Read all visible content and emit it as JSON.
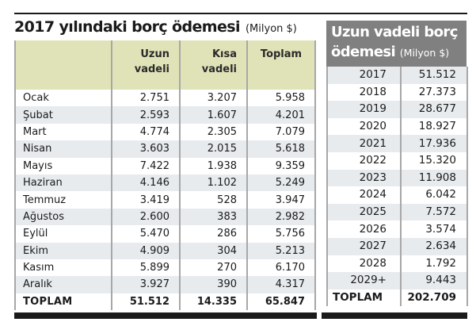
{
  "left": {
    "title": "2017 yılındaki borç ödemesi",
    "unit": "(Milyon $)",
    "headers": [
      "",
      "Uzun vadeli",
      "Kısa vadeli",
      "Toplam"
    ],
    "header_lines": {
      "uzun": [
        "Uzun",
        "vadeli"
      ],
      "kisa": [
        "Kısa",
        "vadeli"
      ],
      "toplam": [
        "Toplam"
      ]
    },
    "rows": [
      {
        "month": "Ocak",
        "uzun": "2.751",
        "kisa": "3.207",
        "toplam": "5.958"
      },
      {
        "month": "Şubat",
        "uzun": "2.593",
        "kisa": "1.607",
        "toplam": "4.201"
      },
      {
        "month": "Mart",
        "uzun": "4.774",
        "kisa": "2.305",
        "toplam": "7.079"
      },
      {
        "month": "Nisan",
        "uzun": "3.603",
        "kisa": "2.015",
        "toplam": "5.618"
      },
      {
        "month": "Mayıs",
        "uzun": "7.422",
        "kisa": "1.938",
        "toplam": "9.359"
      },
      {
        "month": "Haziran",
        "uzun": "4.146",
        "kisa": "1.102",
        "toplam": "5.249"
      },
      {
        "month": "Temmuz",
        "uzun": "3.419",
        "kisa": "528",
        "toplam": "3.947"
      },
      {
        "month": "Ağustos",
        "uzun": "2.600",
        "kisa": "383",
        "toplam": "2.982"
      },
      {
        "month": "Eylül",
        "uzun": "5.470",
        "kisa": "286",
        "toplam": "5.756"
      },
      {
        "month": "Ekim",
        "uzun": "4.909",
        "kisa": "304",
        "toplam": "5.213"
      },
      {
        "month": "Kasım",
        "uzun": "5.899",
        "kisa": "270",
        "toplam": "6.170"
      },
      {
        "month": "Aralık",
        "uzun": "3.927",
        "kisa": "390",
        "toplam": "4.317"
      }
    ],
    "total": {
      "label": "TOPLAM",
      "uzun": "51.512",
      "kisa": "14.335",
      "toplam": "65.847"
    }
  },
  "right": {
    "title_line1": "Uzun vadeli borç",
    "title_line2": "ödemesi",
    "unit": "(Milyon $)",
    "rows": [
      {
        "year": "2017",
        "value": "51.512"
      },
      {
        "year": "2018",
        "value": "27.373"
      },
      {
        "year": "2019",
        "value": "28.677"
      },
      {
        "year": "2020",
        "value": "18.927"
      },
      {
        "year": "2021",
        "value": "17.936"
      },
      {
        "year": "2022",
        "value": "15.320"
      },
      {
        "year": "2023",
        "value": "11.908"
      },
      {
        "year": "2024",
        "value": "6.042"
      },
      {
        "year": "2025",
        "value": "7.572"
      },
      {
        "year": "2026",
        "value": "3.574"
      },
      {
        "year": "2027",
        "value": "2.634"
      },
      {
        "year": "2028",
        "value": "1.792"
      },
      {
        "year": "2029+",
        "value": "9.443"
      }
    ],
    "total": {
      "label": "TOPLAM",
      "value": "202.709"
    }
  },
  "colors": {
    "header_tan": "#e0e3b8",
    "header_gray": "#808080",
    "stripe": "#e7ebee",
    "rule": "#1a1a1a"
  }
}
